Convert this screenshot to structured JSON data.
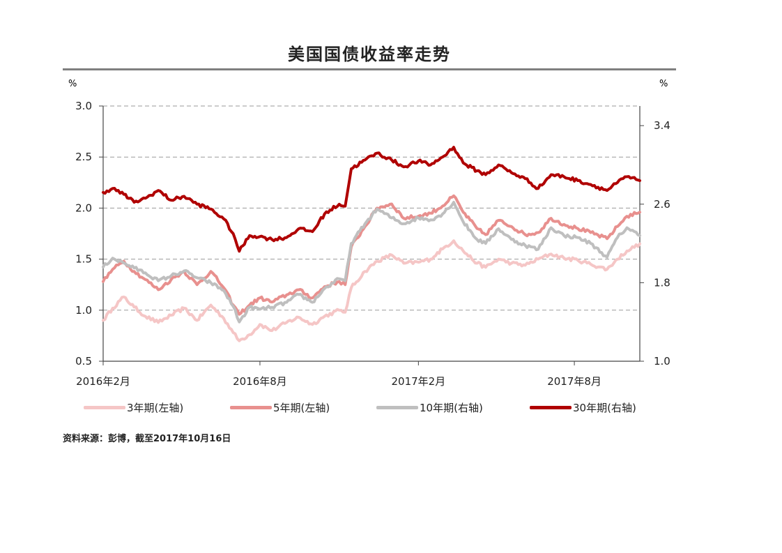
{
  "chart_data": {
    "type": "line",
    "title": "美国国债收益率走势",
    "left_unit": "%",
    "right_unit": "%",
    "left_axis": {
      "ylim": [
        0.5,
        3.0
      ],
      "ticks": [
        "0.5",
        "1.0",
        "1.5",
        "2.0",
        "2.5",
        "3.0"
      ]
    },
    "right_axis": {
      "ylim": [
        1.0,
        3.6
      ],
      "ticks": [
        "1.0",
        "1.8",
        "2.6",
        "3.4"
      ]
    },
    "x_ticks": [
      "2016年2月",
      "2016年8月",
      "2017年2月",
      "2017年8月"
    ],
    "x_tick_dates": [
      "2016-02-01",
      "2016-08-01",
      "2017-02-01",
      "2017-08-01"
    ],
    "x_range": [
      "2016-02-01",
      "2017-10-16"
    ],
    "grid": "horizontal dashed",
    "legend_position": "bottom",
    "series": [
      {
        "name": "3年期(左轴)",
        "axis": "left",
        "color": "#f5c6c6",
        "points": [
          [
            "2016-02-01",
            0.9
          ],
          [
            "2016-02-12",
            1.02
          ],
          [
            "2016-02-25",
            1.13
          ],
          [
            "2016-03-08",
            1.03
          ],
          [
            "2016-03-21",
            0.94
          ],
          [
            "2016-04-05",
            0.88
          ],
          [
            "2016-04-20",
            0.95
          ],
          [
            "2016-05-05",
            1.02
          ],
          [
            "2016-05-20",
            0.9
          ],
          [
            "2016-06-05",
            1.05
          ],
          [
            "2016-06-20",
            0.92
          ],
          [
            "2016-07-01",
            0.78
          ],
          [
            "2016-07-08",
            0.7
          ],
          [
            "2016-07-20",
            0.76
          ],
          [
            "2016-08-01",
            0.86
          ],
          [
            "2016-08-15",
            0.8
          ],
          [
            "2016-09-01",
            0.88
          ],
          [
            "2016-09-15",
            0.93
          ],
          [
            "2016-10-01",
            0.86
          ],
          [
            "2016-10-15",
            0.94
          ],
          [
            "2016-11-01",
            1.0
          ],
          [
            "2016-11-08",
            0.98
          ],
          [
            "2016-11-15",
            1.22
          ],
          [
            "2016-12-01",
            1.38
          ],
          [
            "2016-12-15",
            1.48
          ],
          [
            "2017-01-01",
            1.54
          ],
          [
            "2017-01-15",
            1.46
          ],
          [
            "2017-02-01",
            1.47
          ],
          [
            "2017-02-15",
            1.5
          ],
          [
            "2017-03-01",
            1.6
          ],
          [
            "2017-03-14",
            1.68
          ],
          [
            "2017-03-25",
            1.58
          ],
          [
            "2017-04-10",
            1.46
          ],
          [
            "2017-04-20",
            1.42
          ],
          [
            "2017-05-05",
            1.5
          ],
          [
            "2017-05-20",
            1.46
          ],
          [
            "2017-06-05",
            1.44
          ],
          [
            "2017-06-20",
            1.5
          ],
          [
            "2017-07-05",
            1.55
          ],
          [
            "2017-07-20",
            1.51
          ],
          [
            "2017-08-05",
            1.49
          ],
          [
            "2017-08-20",
            1.45
          ],
          [
            "2017-09-08",
            1.4
          ],
          [
            "2017-09-20",
            1.5
          ],
          [
            "2017-10-01",
            1.58
          ],
          [
            "2017-10-16",
            1.65
          ]
        ]
      },
      {
        "name": "5年期(左轴)",
        "axis": "left",
        "color": "#e8908e",
        "points": [
          [
            "2016-02-01",
            1.28
          ],
          [
            "2016-02-12",
            1.4
          ],
          [
            "2016-02-25",
            1.48
          ],
          [
            "2016-03-08",
            1.38
          ],
          [
            "2016-03-21",
            1.3
          ],
          [
            "2016-04-05",
            1.2
          ],
          [
            "2016-04-20",
            1.3
          ],
          [
            "2016-05-05",
            1.38
          ],
          [
            "2016-05-20",
            1.25
          ],
          [
            "2016-06-05",
            1.38
          ],
          [
            "2016-06-20",
            1.22
          ],
          [
            "2016-07-01",
            1.05
          ],
          [
            "2016-07-08",
            0.96
          ],
          [
            "2016-07-20",
            1.05
          ],
          [
            "2016-08-01",
            1.12
          ],
          [
            "2016-08-15",
            1.08
          ],
          [
            "2016-09-01",
            1.15
          ],
          [
            "2016-09-15",
            1.2
          ],
          [
            "2016-10-01",
            1.12
          ],
          [
            "2016-10-15",
            1.23
          ],
          [
            "2016-11-01",
            1.28
          ],
          [
            "2016-11-08",
            1.25
          ],
          [
            "2016-11-15",
            1.62
          ],
          [
            "2016-12-01",
            1.82
          ],
          [
            "2016-12-15",
            2.0
          ],
          [
            "2017-01-01",
            2.04
          ],
          [
            "2017-01-15",
            1.9
          ],
          [
            "2017-02-01",
            1.92
          ],
          [
            "2017-02-15",
            1.95
          ],
          [
            "2017-03-01",
            2.02
          ],
          [
            "2017-03-14",
            2.12
          ],
          [
            "2017-03-25",
            1.96
          ],
          [
            "2017-04-10",
            1.8
          ],
          [
            "2017-04-20",
            1.74
          ],
          [
            "2017-05-05",
            1.88
          ],
          [
            "2017-05-20",
            1.82
          ],
          [
            "2017-06-05",
            1.74
          ],
          [
            "2017-06-20",
            1.76
          ],
          [
            "2017-07-05",
            1.9
          ],
          [
            "2017-07-20",
            1.84
          ],
          [
            "2017-08-05",
            1.8
          ],
          [
            "2017-08-20",
            1.76
          ],
          [
            "2017-09-08",
            1.7
          ],
          [
            "2017-09-20",
            1.82
          ],
          [
            "2017-10-01",
            1.92
          ],
          [
            "2017-10-16",
            1.96
          ]
        ]
      },
      {
        "name": "10年期(右轴)",
        "axis": "right",
        "color": "#bfbfbf",
        "points": [
          [
            "2016-02-01",
            1.96
          ],
          [
            "2016-02-12",
            2.05
          ],
          [
            "2016-02-25",
            2.0
          ],
          [
            "2016-03-08",
            1.95
          ],
          [
            "2016-03-21",
            1.9
          ],
          [
            "2016-04-05",
            1.82
          ],
          [
            "2016-04-20",
            1.87
          ],
          [
            "2016-05-05",
            1.92
          ],
          [
            "2016-05-20",
            1.85
          ],
          [
            "2016-06-05",
            1.8
          ],
          [
            "2016-06-20",
            1.72
          ],
          [
            "2016-07-01",
            1.56
          ],
          [
            "2016-07-08",
            1.4
          ],
          [
            "2016-07-20",
            1.55
          ],
          [
            "2016-08-01",
            1.53
          ],
          [
            "2016-08-15",
            1.55
          ],
          [
            "2016-09-01",
            1.6
          ],
          [
            "2016-09-15",
            1.68
          ],
          [
            "2016-10-01",
            1.6
          ],
          [
            "2016-10-15",
            1.74
          ],
          [
            "2016-11-01",
            1.84
          ],
          [
            "2016-11-08",
            1.82
          ],
          [
            "2016-11-15",
            2.2
          ],
          [
            "2016-12-01",
            2.4
          ],
          [
            "2016-12-15",
            2.55
          ],
          [
            "2017-01-01",
            2.46
          ],
          [
            "2017-01-15",
            2.4
          ],
          [
            "2017-02-01",
            2.46
          ],
          [
            "2017-02-15",
            2.44
          ],
          [
            "2017-03-01",
            2.5
          ],
          [
            "2017-03-14",
            2.62
          ],
          [
            "2017-03-25",
            2.42
          ],
          [
            "2017-04-10",
            2.24
          ],
          [
            "2017-04-20",
            2.2
          ],
          [
            "2017-05-05",
            2.35
          ],
          [
            "2017-05-20",
            2.24
          ],
          [
            "2017-06-05",
            2.18
          ],
          [
            "2017-06-20",
            2.14
          ],
          [
            "2017-07-05",
            2.36
          ],
          [
            "2017-07-20",
            2.28
          ],
          [
            "2017-08-05",
            2.26
          ],
          [
            "2017-08-20",
            2.2
          ],
          [
            "2017-09-08",
            2.06
          ],
          [
            "2017-09-20",
            2.26
          ],
          [
            "2017-10-01",
            2.36
          ],
          [
            "2017-10-16",
            2.28
          ]
        ]
      },
      {
        "name": "30年期(右轴)",
        "axis": "right",
        "color": "#b00000",
        "points": [
          [
            "2016-02-01",
            2.72
          ],
          [
            "2016-02-12",
            2.76
          ],
          [
            "2016-02-25",
            2.7
          ],
          [
            "2016-03-08",
            2.62
          ],
          [
            "2016-03-21",
            2.66
          ],
          [
            "2016-04-05",
            2.74
          ],
          [
            "2016-04-20",
            2.64
          ],
          [
            "2016-05-05",
            2.68
          ],
          [
            "2016-05-20",
            2.6
          ],
          [
            "2016-06-05",
            2.55
          ],
          [
            "2016-06-20",
            2.45
          ],
          [
            "2016-07-01",
            2.3
          ],
          [
            "2016-07-08",
            2.12
          ],
          [
            "2016-07-20",
            2.28
          ],
          [
            "2016-08-01",
            2.27
          ],
          [
            "2016-08-15",
            2.24
          ],
          [
            "2016-09-01",
            2.26
          ],
          [
            "2016-09-15",
            2.35
          ],
          [
            "2016-10-01",
            2.32
          ],
          [
            "2016-10-15",
            2.5
          ],
          [
            "2016-11-01",
            2.6
          ],
          [
            "2016-11-08",
            2.58
          ],
          [
            "2016-11-15",
            2.96
          ],
          [
            "2016-12-01",
            3.05
          ],
          [
            "2016-12-15",
            3.12
          ],
          [
            "2017-01-01",
            3.05
          ],
          [
            "2017-01-15",
            2.98
          ],
          [
            "2017-02-01",
            3.04
          ],
          [
            "2017-02-15",
            3.0
          ],
          [
            "2017-03-01",
            3.08
          ],
          [
            "2017-03-14",
            3.18
          ],
          [
            "2017-03-25",
            3.02
          ],
          [
            "2017-04-10",
            2.94
          ],
          [
            "2017-04-20",
            2.9
          ],
          [
            "2017-05-05",
            3.0
          ],
          [
            "2017-05-20",
            2.92
          ],
          [
            "2017-06-05",
            2.86
          ],
          [
            "2017-06-20",
            2.76
          ],
          [
            "2017-07-05",
            2.9
          ],
          [
            "2017-07-20",
            2.88
          ],
          [
            "2017-08-05",
            2.84
          ],
          [
            "2017-08-20",
            2.8
          ],
          [
            "2017-09-08",
            2.74
          ],
          [
            "2017-09-20",
            2.82
          ],
          [
            "2017-10-01",
            2.88
          ],
          [
            "2017-10-16",
            2.84
          ]
        ]
      }
    ]
  },
  "source_text": "资料来源：彭博，截至2017年10月16日"
}
